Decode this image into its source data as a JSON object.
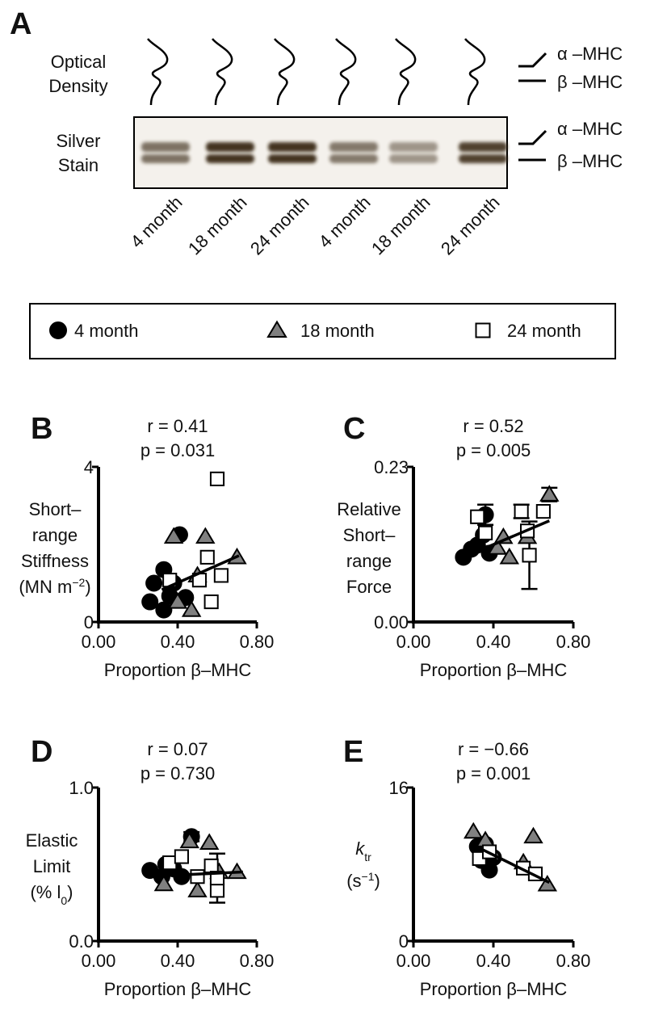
{
  "panel_a": {
    "label": "A",
    "density_label": [
      "Optical",
      "Density"
    ],
    "stain_label": [
      "Silver",
      "Stain"
    ],
    "lanes": [
      "4 month",
      "18 month",
      "24 month",
      "4 month",
      "18 month",
      "24 month"
    ],
    "bands": [
      "α –MHC",
      "β –MHC"
    ]
  },
  "chart_data": [
    {
      "type": "scatter",
      "panel": "B",
      "annotations": [
        "r = 0.41",
        "p = 0.031"
      ],
      "ylabel": [
        [
          {
            "t": "Short–"
          }
        ],
        [
          {
            "t": "range"
          }
        ],
        [
          {
            "t": "Stiffness"
          }
        ],
        [
          {
            "t": "(MN m"
          },
          {
            "t": "−2",
            "s": "sup"
          },
          {
            "t": ")"
          }
        ]
      ],
      "xlabel": "Proportion β–MHC",
      "xlim": [
        0,
        0.8
      ],
      "xticks": [
        {
          "value": 0,
          "label": "0.00"
        },
        {
          "value": 0.4,
          "label": "0.40"
        },
        {
          "value": 0.8,
          "label": "0.80"
        }
      ],
      "ylim": [
        0,
        4
      ],
      "yticks": [
        0,
        4
      ],
      "series": [
        {
          "name": "4 month",
          "marker": "circle",
          "color": "#000000",
          "x": [
            0.26,
            0.33,
            0.36,
            0.41,
            0.38,
            0.28,
            0.33,
            0.44
          ],
          "values": [
            0.52,
            1.35,
            0.67,
            2.25,
            1.0,
            1.0,
            0.31,
            0.63
          ]
        },
        {
          "name": "18 month",
          "marker": "triangle",
          "color": "#808080",
          "x": [
            0.38,
            0.54,
            0.7,
            0.5,
            0.47,
            0.4
          ],
          "values": [
            2.2,
            2.2,
            1.67,
            1.2,
            0.31,
            0.52
          ]
        },
        {
          "name": "24 month",
          "marker": "square",
          "color": "#ffffff",
          "x": [
            0.6,
            0.55,
            0.62,
            0.51,
            0.57,
            0.36
          ],
          "values": [
            3.69,
            1.67,
            1.2,
            1.08,
            0.52,
            1.08
          ]
        }
      ],
      "fit": {
        "x": [
          0.32,
          0.71
        ],
        "values": [
          0.83,
          1.71
        ]
      }
    },
    {
      "type": "scatter",
      "panel": "C",
      "annotations": [
        "r = 0.52",
        "p = 0.005"
      ],
      "ylabel": [
        [
          {
            "t": "Relative"
          }
        ],
        [
          {
            "t": "Short–"
          }
        ],
        [
          {
            "t": "range"
          }
        ],
        [
          {
            "t": "Force"
          }
        ]
      ],
      "xlabel": "Proportion β–MHC",
      "xlim": [
        0,
        0.8
      ],
      "xticks": [
        {
          "value": 0,
          "label": "0.00"
        },
        {
          "value": 0.4,
          "label": "0.40"
        },
        {
          "value": 0.8,
          "label": "0.80"
        }
      ],
      "ylim": [
        0,
        0.23
      ],
      "yticks": [
        {
          "value": 0,
          "label": "0.00"
        },
        0.23
      ],
      "series": [
        {
          "marker": "circle",
          "color": "#000000",
          "x": [
            0.25,
            0.32,
            0.36,
            0.38,
            0.35,
            0.29
          ],
          "values": [
            0.096,
            0.114,
            0.159,
            0.102,
            0.129,
            0.108
          ],
          "errors": [
            null,
            null,
            0.015,
            null,
            null,
            null
          ]
        },
        {
          "marker": "triangle",
          "color": "#808080",
          "x": [
            0.68,
            0.42,
            0.48,
            0.57,
            0.45
          ],
          "values": [
            0.189,
            0.11,
            0.096,
            0.126,
            0.126
          ],
          "errors": [
            0.01,
            null,
            null,
            null,
            null
          ]
        },
        {
          "marker": "square",
          "color": "#ffffff",
          "x": [
            0.54,
            0.65,
            0.57,
            0.58,
            0.32,
            0.36
          ],
          "values": [
            0.164,
            0.164,
            0.135,
            0.099,
            0.156,
            0.132
          ],
          "errors": [
            0.01,
            null,
            null,
            0.05,
            null,
            null
          ]
        }
      ],
      "fit": {
        "x": [
          0.25,
          0.68
        ],
        "values": [
          0.096,
          0.15
        ]
      }
    },
    {
      "type": "scatter",
      "panel": "D",
      "annotations": [
        "r = 0.07",
        "p = 0.730"
      ],
      "ylabel": [
        [
          {
            "t": "Elastic"
          }
        ],
        [
          {
            "t": "Limit"
          }
        ],
        [
          {
            "t": "(% l"
          },
          {
            "t": "0",
            "s": "sub"
          },
          {
            "t": ")"
          }
        ]
      ],
      "xlabel": "Proportion β–MHC",
      "xlim": [
        0,
        0.8
      ],
      "xticks": [
        {
          "value": 0,
          "label": "0.00"
        },
        {
          "value": 0.4,
          "label": "0.40"
        },
        {
          "value": 0.8,
          "label": "0.80"
        }
      ],
      "ylim": [
        0,
        1
      ],
      "yticks": [
        {
          "value": 0,
          "label": "0.0"
        },
        {
          "value": 1,
          "label": "1.0"
        }
      ],
      "series": [
        {
          "marker": "circle",
          "color": "#000000",
          "x": [
            0.26,
            0.34,
            0.47,
            0.42,
            0.38,
            0.32
          ],
          "values": [
            0.46,
            0.5,
            0.68,
            0.42,
            0.47,
            0.42
          ],
          "errors": [
            null,
            null,
            0.03,
            null,
            null,
            null
          ]
        },
        {
          "marker": "triangle",
          "color": "#808080",
          "x": [
            0.46,
            0.56,
            0.7,
            0.33,
            0.5,
            0.61
          ],
          "values": [
            0.65,
            0.64,
            0.45,
            0.37,
            0.33,
            0.45
          ],
          "errors": [
            null,
            null,
            null,
            null,
            null,
            null
          ]
        },
        {
          "marker": "square",
          "color": "#ffffff",
          "x": [
            0.36,
            0.57,
            0.6,
            0.5,
            0.6,
            0.42
          ],
          "values": [
            0.51,
            0.49,
            0.33,
            0.42,
            0.41,
            0.55
          ],
          "errors": [
            null,
            null,
            null,
            null,
            0.16,
            null
          ]
        }
      ],
      "fit": {
        "x": [
          0.24,
          0.73
        ],
        "values": [
          0.42,
          0.45
        ]
      }
    },
    {
      "type": "scatter",
      "panel": "E",
      "annotations": [
        "r = −0.66",
        "p = 0.001"
      ],
      "ylabel": [
        [
          {
            "t": "k",
            "s": "italic"
          },
          {
            "t": "tr",
            "s": "sub"
          }
        ],
        [
          {
            "t": "(s"
          },
          {
            "t": "−1",
            "s": "sup"
          },
          {
            "t": ")"
          }
        ]
      ],
      "xlabel": "Proportion β–MHC",
      "xlim": [
        0,
        0.8
      ],
      "xticks": [
        {
          "value": 0,
          "label": "0.00"
        },
        {
          "value": 0.4,
          "label": "0.40"
        },
        {
          "value": 0.8,
          "label": "0.80"
        }
      ],
      "ylim": [
        0,
        16
      ],
      "yticks": [
        0,
        16
      ],
      "series": [
        {
          "marker": "circle",
          "color": "#000000",
          "x": [
            0.32,
            0.36,
            0.38,
            0.4,
            0.34
          ],
          "values": [
            9.85,
            10.1,
            7.4,
            8.7,
            8.4
          ]
        },
        {
          "marker": "triangle",
          "color": "#808080",
          "x": [
            0.3,
            0.6,
            0.67,
            0.4,
            0.55,
            0.36
          ],
          "values": [
            11.4,
            10.9,
            5.9,
            9.1,
            8.2,
            10.5
          ]
        },
        {
          "marker": "square",
          "color": "#ffffff",
          "x": [
            0.33,
            0.55,
            0.61,
            0.38
          ],
          "values": [
            8.6,
            7.6,
            7.0,
            9.3
          ]
        }
      ],
      "fit": {
        "x": [
          0.29,
          0.68
        ],
        "values": [
          10.1,
          6.1
        ]
      }
    }
  ]
}
